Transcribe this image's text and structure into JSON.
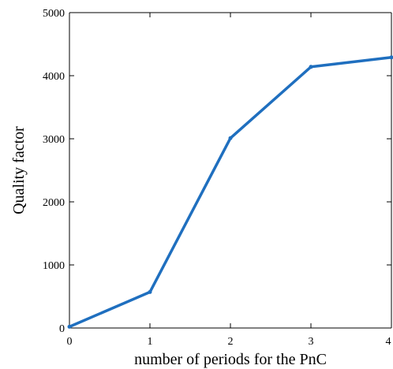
{
  "chart_data": {
    "type": "line",
    "title": "",
    "xlabel": "number of periods for the PnC",
    "ylabel": "Quality factor",
    "xlim": [
      0,
      4
    ],
    "ylim": [
      0,
      5000
    ],
    "x_ticks": [
      "0",
      "1",
      "2",
      "3",
      "4"
    ],
    "y_ticks": [
      "0",
      "1000",
      "2000",
      "3000",
      "4000",
      "5000"
    ],
    "grid": false,
    "legend": "none",
    "series": [
      {
        "x": [
          0,
          1,
          2,
          3,
          4
        ],
        "values": [
          20,
          570,
          3010,
          4140,
          4290
        ],
        "color": "#1f6fbf"
      }
    ]
  }
}
